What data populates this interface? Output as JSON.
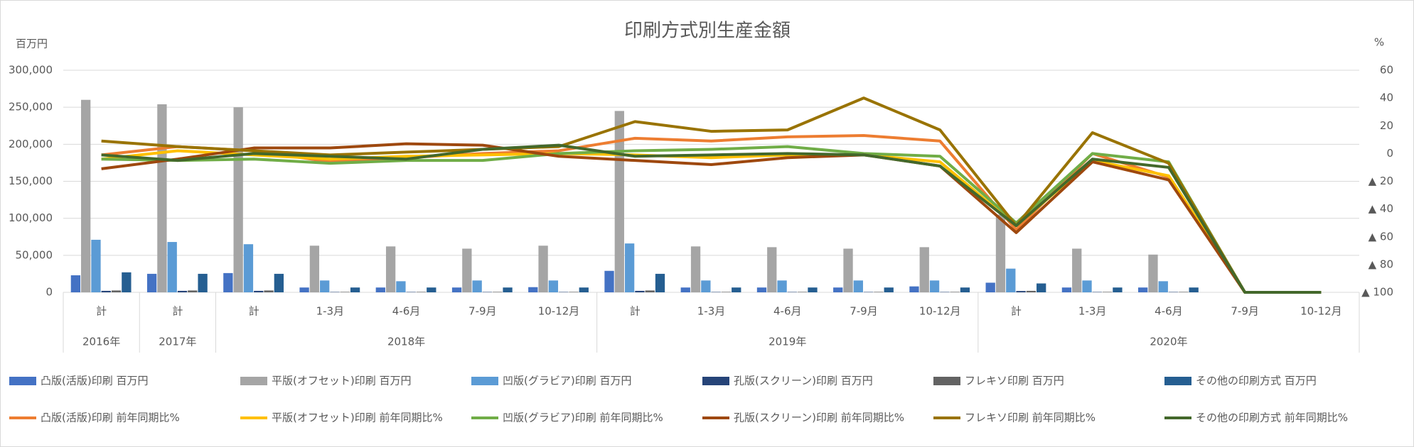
{
  "chart_data": {
    "type": "combo",
    "title": "印刷方式別生産金額",
    "y_unit": "百万円",
    "y2_unit": "%",
    "categories": [
      "計",
      "計",
      "計",
      "1-3月",
      "4-6月",
      "7-9月",
      "10-12月",
      "計",
      "1-3月",
      "4-6月",
      "7-9月",
      "10-12月",
      "計",
      "1-3月",
      "4-6月",
      "7-9月",
      "10-12月"
    ],
    "category_groups": [
      {
        "label": "2016年",
        "span": 1
      },
      {
        "label": "2017年",
        "span": 1
      },
      {
        "label": "2018年",
        "span": 5
      },
      {
        "label": "2019年",
        "span": 5
      },
      {
        "label": "2020年",
        "span": 5
      }
    ],
    "ylim": [
      0,
      300000
    ],
    "yticks": [
      0,
      {
        "value": 50000,
        "label": "50,000"
      },
      {
        "value": 100000,
        "label": "100,000"
      },
      {
        "value": 150000,
        "label": "150,000"
      },
      {
        "value": 200000,
        "label": "200,000"
      },
      {
        "value": 250000,
        "label": "250,000"
      },
      {
        "value": 300000,
        "label": "300,000"
      }
    ],
    "y2lim": [
      -100,
      60
    ],
    "y2ticks": [
      60,
      40,
      20,
      0,
      {
        "value": -20,
        "label": "▲ 20"
      },
      {
        "value": -40,
        "label": "▲ 40"
      },
      {
        "value": -60,
        "label": "▲ 60"
      },
      {
        "value": -80,
        "label": "▲ 80"
      },
      {
        "value": -100,
        "label": "▲ 100"
      }
    ],
    "grid": true,
    "legend": "bottom",
    "series": [
      {
        "name": "凸版(活版)印刷 百万円",
        "kind": "bar",
        "color": "#4472c4",
        "values": [
          23000,
          25000,
          26000,
          6500,
          6500,
          6500,
          7000,
          29000,
          6500,
          6500,
          6500,
          8000,
          13000,
          6500,
          6500,
          null,
          null
        ]
      },
      {
        "name": "平版(オフセット)印刷 百万円",
        "kind": "bar",
        "color": "#a5a5a5",
        "values": [
          260000,
          254000,
          250000,
          63000,
          62000,
          59000,
          63000,
          245000,
          62000,
          61000,
          59000,
          61000,
          105000,
          59000,
          51000,
          null,
          null
        ]
      },
      {
        "name": "凹版(グラビア)印刷 百万円",
        "kind": "bar",
        "color": "#5b9bd5",
        "values": [
          71000,
          68000,
          65000,
          16000,
          15000,
          16000,
          16000,
          66000,
          16000,
          16000,
          16000,
          16000,
          32000,
          16000,
          15000,
          null,
          null
        ]
      },
      {
        "name": "孔版(スクリーン)印刷 百万円",
        "kind": "bar",
        "color": "#264478",
        "values": [
          2000,
          2000,
          2000,
          500,
          500,
          500,
          500,
          2000,
          500,
          500,
          500,
          500,
          1800,
          500,
          500,
          null,
          null
        ]
      },
      {
        "name": "フレキソ印刷 百万円",
        "kind": "bar",
        "color": "#636363",
        "values": [
          2500,
          2500,
          2500,
          600,
          600,
          600,
          600,
          2500,
          600,
          600,
          600,
          600,
          2000,
          600,
          600,
          null,
          null
        ]
      },
      {
        "name": "その他の印刷方式 百万円",
        "kind": "bar",
        "color": "#255e91",
        "values": [
          27000,
          25000,
          25000,
          6500,
          6500,
          6500,
          6500,
          25000,
          6500,
          6500,
          6500,
          6500,
          12000,
          6500,
          6500,
          null,
          null
        ]
      },
      {
        "name": "凸版(活版)印刷 前年同期比%",
        "kind": "line",
        "axis": "y2",
        "color": "#ed7d31",
        "values": [
          -1,
          5,
          2,
          -6,
          -3,
          0,
          2,
          11,
          9,
          12,
          13,
          9,
          -55,
          0,
          -17,
          -100,
          -100
        ]
      },
      {
        "name": "平版(オフセット)印刷 前年同期比%",
        "kind": "line",
        "axis": "y2",
        "color": "#ffc000",
        "values": [
          -4,
          2,
          -1,
          -4,
          -2,
          -1,
          0,
          -1,
          -3,
          -1,
          -1,
          -6,
          -52,
          -5,
          -16,
          -100,
          -100
        ]
      },
      {
        "name": "凹版(グラビア)印刷 前年同期比%",
        "kind": "line",
        "axis": "y2",
        "color": "#70ad47",
        "values": [
          -4,
          -5,
          -4,
          -7,
          -5,
          -5,
          0,
          2,
          3,
          5,
          0,
          -2,
          -50,
          0,
          -6,
          -100,
          -100
        ]
      },
      {
        "name": "孔版(スクリーン)印刷 前年同期比%",
        "kind": "line",
        "axis": "y2",
        "color": "#9e480e",
        "values": [
          -11,
          -4,
          4,
          4,
          7,
          6,
          -2,
          -5,
          -8,
          -3,
          -1,
          -9,
          -57,
          -6,
          -19,
          -100,
          -100
        ]
      },
      {
        "name": "フレキソ印刷 前年同期比%",
        "kind": "line",
        "axis": "y2",
        "color": "#997300",
        "values": [
          9,
          5,
          2,
          -1,
          1,
          3,
          5,
          23,
          16,
          17,
          40,
          17,
          -52,
          15,
          -7,
          -100,
          -100
        ]
      },
      {
        "name": "その他の印刷方式 前年同期比%",
        "kind": "line",
        "axis": "y2",
        "color": "#43682b",
        "values": [
          -1,
          -5,
          0,
          -2,
          -4,
          3,
          6,
          -2,
          -1,
          0,
          -1,
          -9,
          -52,
          -4,
          -10,
          -100,
          -100
        ]
      }
    ]
  }
}
